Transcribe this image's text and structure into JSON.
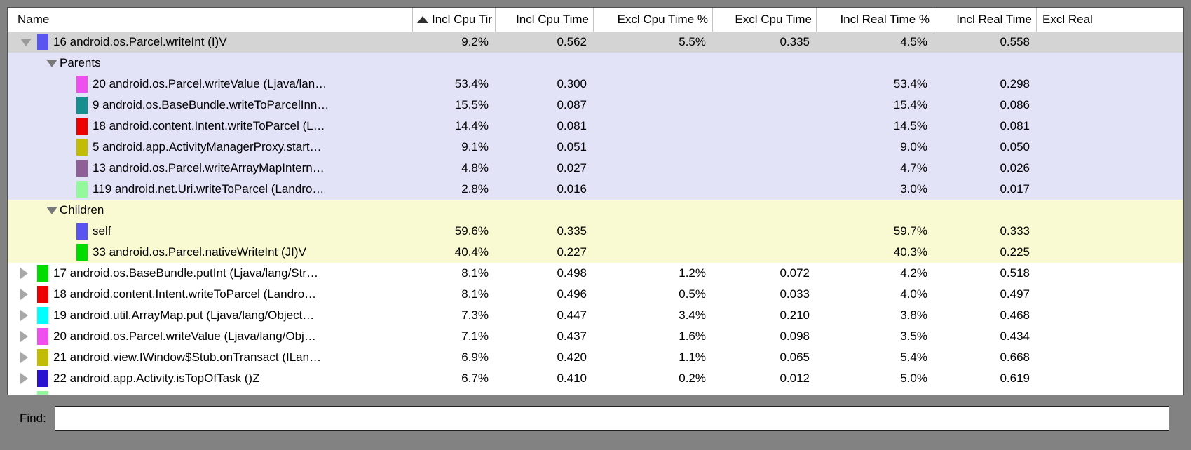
{
  "table": {
    "columns": [
      {
        "key": "name",
        "label": "Name",
        "sort": false
      },
      {
        "key": "incl_cpu_pct",
        "label": "Incl Cpu Tir",
        "sort": true
      },
      {
        "key": "incl_cpu",
        "label": "Incl Cpu Time",
        "sort": false
      },
      {
        "key": "excl_cpu_pct",
        "label": "Excl Cpu Time %",
        "sort": false
      },
      {
        "key": "excl_cpu",
        "label": "Excl Cpu Time",
        "sort": false
      },
      {
        "key": "incl_real_pct",
        "label": "Incl Real Time %",
        "sort": false
      },
      {
        "key": "incl_real",
        "label": "Incl Real Time",
        "sort": false
      },
      {
        "key": "excl_real",
        "label": "Excl Real",
        "sort": false
      }
    ],
    "rows": [
      {
        "indent": "top",
        "arrow": "down",
        "color": "#5a54f0",
        "bg": "selected",
        "name": "16 android.os.Parcel.writeInt (I)V",
        "values": {
          "incl_cpu_pct": "9.2%",
          "incl_cpu": "0.562",
          "excl_cpu_pct": "5.5%",
          "excl_cpu": "0.335",
          "incl_real_pct": "4.5%",
          "incl_real": "0.558",
          "excl_real": ""
        }
      },
      {
        "indent": "section",
        "arrow": "down-dark",
        "color": null,
        "bg": "parents",
        "name": "Parents",
        "values": {}
      },
      {
        "indent": "sub",
        "arrow": "none",
        "color": "#ee4fee",
        "bg": "parents",
        "name": "20 android.os.Parcel.writeValue (Ljava/lan…",
        "values": {
          "incl_cpu_pct": "53.4%",
          "incl_cpu": "0.300",
          "excl_cpu_pct": "",
          "excl_cpu": "",
          "incl_real_pct": "53.4%",
          "incl_real": "0.298",
          "excl_real": ""
        }
      },
      {
        "indent": "sub",
        "arrow": "none",
        "color": "#188f8f",
        "bg": "parents",
        "name": "9 android.os.BaseBundle.writeToParcelInn…",
        "values": {
          "incl_cpu_pct": "15.5%",
          "incl_cpu": "0.087",
          "excl_cpu_pct": "",
          "excl_cpu": "",
          "incl_real_pct": "15.4%",
          "incl_real": "0.086",
          "excl_real": ""
        }
      },
      {
        "indent": "sub",
        "arrow": "none",
        "color": "#ee0000",
        "bg": "parents",
        "name": "18 android.content.Intent.writeToParcel (L…",
        "values": {
          "incl_cpu_pct": "14.4%",
          "incl_cpu": "0.081",
          "excl_cpu_pct": "",
          "excl_cpu": "",
          "incl_real_pct": "14.5%",
          "incl_real": "0.081",
          "excl_real": ""
        }
      },
      {
        "indent": "sub",
        "arrow": "none",
        "color": "#c2bc05",
        "bg": "parents",
        "name": "5 android.app.ActivityManagerProxy.start…",
        "values": {
          "incl_cpu_pct": "9.1%",
          "incl_cpu": "0.051",
          "excl_cpu_pct": "",
          "excl_cpu": "",
          "incl_real_pct": "9.0%",
          "incl_real": "0.050",
          "excl_real": ""
        }
      },
      {
        "indent": "sub",
        "arrow": "none",
        "color": "#8e6096",
        "bg": "parents",
        "name": "13 android.os.Parcel.writeArrayMapIntern…",
        "values": {
          "incl_cpu_pct": "4.8%",
          "incl_cpu": "0.027",
          "excl_cpu_pct": "",
          "excl_cpu": "",
          "incl_real_pct": "4.7%",
          "incl_real": "0.026",
          "excl_real": ""
        }
      },
      {
        "indent": "sub",
        "arrow": "none",
        "color": "#94f89c",
        "bg": "parents",
        "name": "119 android.net.Uri.writeToParcel (Landro…",
        "values": {
          "incl_cpu_pct": "2.8%",
          "incl_cpu": "0.016",
          "excl_cpu_pct": "",
          "excl_cpu": "",
          "incl_real_pct": "3.0%",
          "incl_real": "0.017",
          "excl_real": ""
        }
      },
      {
        "indent": "section",
        "arrow": "down-dark",
        "color": null,
        "bg": "children",
        "name": "Children",
        "values": {}
      },
      {
        "indent": "sub",
        "arrow": "none",
        "color": "#5a54f0",
        "bg": "children",
        "name": "self",
        "values": {
          "incl_cpu_pct": "59.6%",
          "incl_cpu": "0.335",
          "excl_cpu_pct": "",
          "excl_cpu": "",
          "incl_real_pct": "59.7%",
          "incl_real": "0.333",
          "excl_real": ""
        }
      },
      {
        "indent": "sub",
        "arrow": "none",
        "color": "#00dc00",
        "bg": "children",
        "name": "33 android.os.Parcel.nativeWriteInt (JI)V",
        "values": {
          "incl_cpu_pct": "40.4%",
          "incl_cpu": "0.227",
          "excl_cpu_pct": "",
          "excl_cpu": "",
          "incl_real_pct": "40.3%",
          "incl_real": "0.225",
          "excl_real": ""
        }
      },
      {
        "indent": "top",
        "arrow": "right",
        "color": "#00dc00",
        "bg": "white",
        "name": "17 android.os.BaseBundle.putInt (Ljava/lang/Str…",
        "values": {
          "incl_cpu_pct": "8.1%",
          "incl_cpu": "0.498",
          "excl_cpu_pct": "1.2%",
          "excl_cpu": "0.072",
          "incl_real_pct": "4.2%",
          "incl_real": "0.518",
          "excl_real": ""
        }
      },
      {
        "indent": "top",
        "arrow": "right",
        "color": "#ee0000",
        "bg": "white",
        "name": "18 android.content.Intent.writeToParcel (Landro…",
        "values": {
          "incl_cpu_pct": "8.1%",
          "incl_cpu": "0.496",
          "excl_cpu_pct": "0.5%",
          "excl_cpu": "0.033",
          "incl_real_pct": "4.0%",
          "incl_real": "0.497",
          "excl_real": ""
        }
      },
      {
        "indent": "top",
        "arrow": "right",
        "color": "#00ffff",
        "bg": "white",
        "name": "19 android.util.ArrayMap.put (Ljava/lang/Object…",
        "values": {
          "incl_cpu_pct": "7.3%",
          "incl_cpu": "0.447",
          "excl_cpu_pct": "3.4%",
          "excl_cpu": "0.210",
          "incl_real_pct": "3.8%",
          "incl_real": "0.468",
          "excl_real": ""
        }
      },
      {
        "indent": "top",
        "arrow": "right",
        "color": "#ee4fee",
        "bg": "white",
        "name": "20 android.os.Parcel.writeValue (Ljava/lang/Obj…",
        "values": {
          "incl_cpu_pct": "7.1%",
          "incl_cpu": "0.437",
          "excl_cpu_pct": "1.6%",
          "excl_cpu": "0.098",
          "incl_real_pct": "3.5%",
          "incl_real": "0.434",
          "excl_real": ""
        }
      },
      {
        "indent": "top",
        "arrow": "right",
        "color": "#c2bc05",
        "bg": "white",
        "name": "21 android.view.IWindow$Stub.onTransact (ILan…",
        "values": {
          "incl_cpu_pct": "6.9%",
          "incl_cpu": "0.420",
          "excl_cpu_pct": "1.1%",
          "excl_cpu": "0.065",
          "incl_real_pct": "5.4%",
          "incl_real": "0.668",
          "excl_real": ""
        }
      },
      {
        "indent": "top",
        "arrow": "right",
        "color": "#2812d0",
        "bg": "white",
        "name": "22 android.app.Activity.isTopOfTask ()Z",
        "values": {
          "incl_cpu_pct": "6.7%",
          "incl_cpu": "0.410",
          "excl_cpu_pct": "0.2%",
          "excl_cpu": "0.012",
          "incl_real_pct": "5.0%",
          "incl_real": "0.619",
          "excl_real": ""
        }
      }
    ],
    "partial_row_color": "#94f89c"
  },
  "colors": {
    "selected_bg": "#d4d4d4",
    "parents_bg": "#e3e3f8",
    "children_bg": "#fafad2",
    "white_bg": "#ffffff",
    "frame": "#828282"
  },
  "find": {
    "label": "Find:",
    "value": ""
  }
}
